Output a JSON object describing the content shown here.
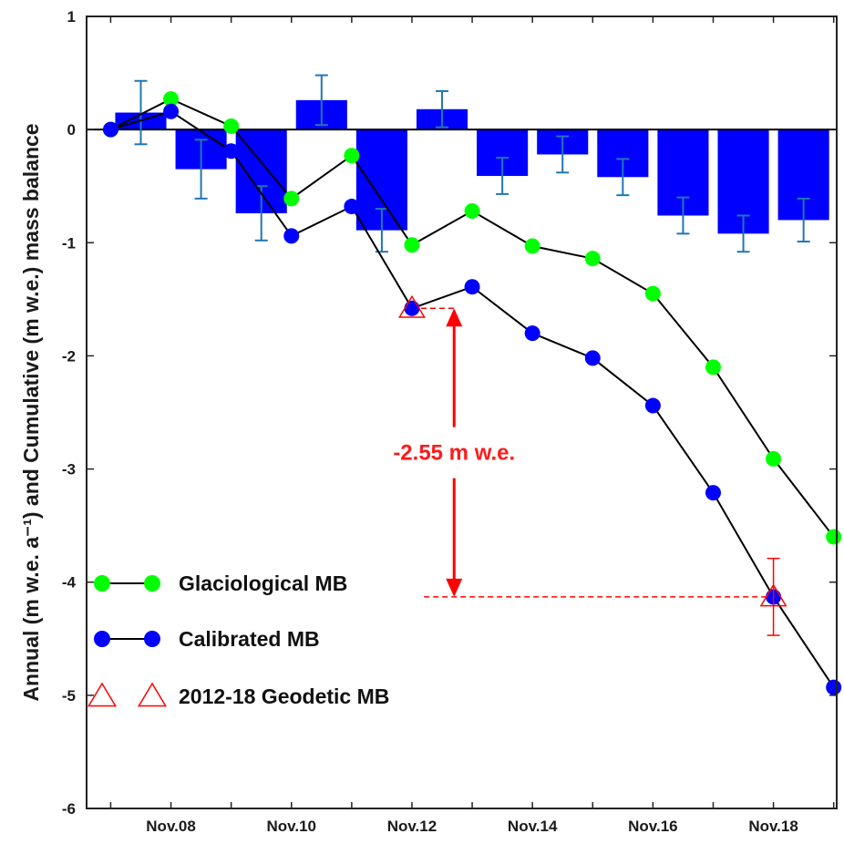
{
  "colors": {
    "bar": "#0000ff",
    "error_bar": "#1f77b4",
    "glaciological": "#00ff00",
    "calibrated": "#0000ff",
    "geodetic": "#ff0000",
    "line": "#000000",
    "annotation": "#ff0000"
  },
  "chart_data": {
    "type": "bar+line",
    "ylabel": "Annual (m w.e. a⁻¹) and Cumulative (m w.e.) mass balance",
    "xlabel": "",
    "ylim": [
      -6,
      1
    ],
    "yticks": [
      1,
      0,
      -1,
      -2,
      -3,
      -4,
      -5,
      -6
    ],
    "xlim": [
      6.6,
      19.05
    ],
    "xticks": [
      {
        "x": 8,
        "label": "Nov.08"
      },
      {
        "x": 10,
        "label": "Nov.10"
      },
      {
        "x": 12,
        "label": "Nov.12"
      },
      {
        "x": 14,
        "label": "Nov.14"
      },
      {
        "x": 16,
        "label": "Nov.16"
      },
      {
        "x": 18,
        "label": "Nov.18"
      }
    ],
    "grid": false,
    "legend_position": "bottom-left",
    "annual_bars": {
      "x": [
        7.5,
        8.5,
        9.5,
        10.5,
        11.5,
        12.5,
        13.5,
        14.5,
        15.5,
        16.5,
        17.5,
        18.5
      ],
      "values": [
        0.15,
        -0.35,
        -0.74,
        0.26,
        -0.89,
        0.18,
        -0.41,
        -0.22,
        -0.42,
        -0.76,
        -0.92,
        -0.8
      ],
      "error": [
        0.28,
        0.26,
        0.24,
        0.22,
        0.19,
        0.16,
        0.16,
        0.16,
        0.16,
        0.16,
        0.16,
        0.19
      ]
    },
    "series": [
      {
        "name": "Glaciological MB",
        "x": [
          7,
          8,
          9,
          10,
          11,
          12,
          13,
          14,
          15,
          16,
          17,
          18,
          19
        ],
        "values": [
          0,
          0.27,
          0.03,
          -0.61,
          -0.23,
          -1.02,
          -0.72,
          -1.03,
          -1.14,
          -1.45,
          -2.1,
          -2.91,
          -3.6
        ]
      },
      {
        "name": "Calibrated MB",
        "x": [
          7,
          8,
          9,
          10,
          11,
          12,
          13,
          14,
          15,
          16,
          17,
          18,
          19
        ],
        "values": [
          0,
          0.16,
          -0.19,
          -0.94,
          -0.68,
          -1.58,
          -1.39,
          -1.8,
          -2.02,
          -2.44,
          -3.21,
          -4.13,
          -4.93
        ]
      }
    ],
    "geodetic": {
      "name": "2012-18 Geodetic MB",
      "x": [
        12,
        18
      ],
      "values": [
        -1.58,
        -4.13
      ],
      "error": [
        0,
        0.34
      ]
    },
    "annotation": {
      "text": "-2.55 m w.e.",
      "x": 12.7,
      "y_top": -1.58,
      "y_bottom": -4.13,
      "ref_lines": [
        {
          "x_from": 12,
          "x_to": 12.7,
          "y": -1.58
        },
        {
          "x_from": 12.2,
          "x_to": 18,
          "y": -4.13
        }
      ]
    }
  }
}
